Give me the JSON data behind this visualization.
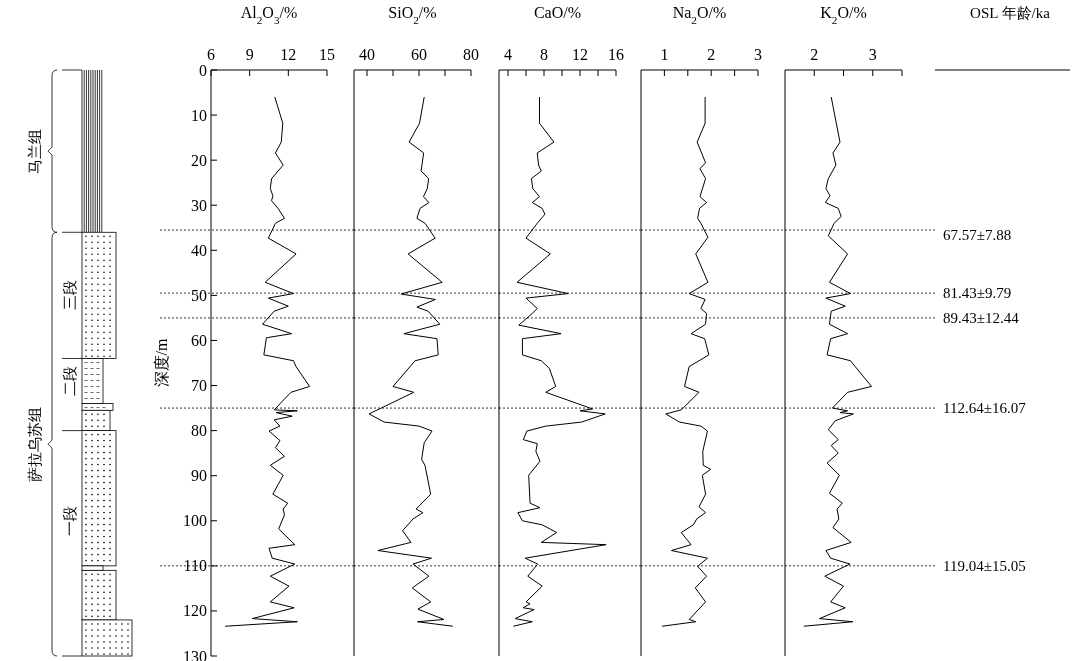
{
  "chart_data": [
    {
      "type": "line",
      "xlabel": "Al$_{2}$O$_{3}$/%",
      "ylabel": "深度/m",
      "xlim": [
        6,
        15
      ],
      "xticks": [
        6,
        9,
        12,
        15
      ],
      "ylim": [
        130,
        0
      ],
      "yticks": [
        0,
        10,
        20,
        30,
        40,
        50,
        60,
        70,
        80,
        90,
        100,
        110,
        120,
        130
      ],
      "marker": "none",
      "line_style": "solid",
      "grid": false,
      "annotations": [
        "马兰组",
        "萨拉乌苏组",
        "三段",
        "二段",
        "一段"
      ],
      "ref_lines": [
        {
          "axis": "y",
          "value": 35.5,
          "line_style": "dotted"
        },
        {
          "axis": "y",
          "value": 49.5,
          "line_style": "dotted"
        },
        {
          "axis": "y",
          "value": 55,
          "line_style": "dotted"
        },
        {
          "axis": "y",
          "value": 75,
          "line_style": "dotted"
        },
        {
          "axis": "y",
          "value": 110,
          "line_style": "dotted"
        }
      ],
      "series": [
        {
          "color": "#000000",
          "x": [
            10.95,
            11.57,
            11.45,
            11.0,
            11.6,
            10.7,
            10.6,
            10.8,
            10.7,
            11.2,
            11.7,
            11.0,
            10.45,
            12.6,
            10.2,
            12.4,
            10.45,
            12.0,
            10.9,
            10.0,
            12.25,
            10.3,
            10.1,
            12.4,
            12.6,
            13.65,
            12.2,
            10.9,
            12.7,
            11.05,
            12.3,
            10.9,
            11.35,
            10.5,
            11.35,
            11.0,
            11.7,
            10.6,
            11.6,
            10.8,
            11.95,
            11.6,
            11.7,
            11.25,
            12.5,
            10.5,
            10.75,
            12.5,
            10.6,
            12.05,
            10.6,
            12.45,
            9.2,
            12.7,
            7.1
          ],
          "values": [
            6,
            11.8,
            16,
            18.4,
            21.1,
            24.1,
            26.3,
            27.9,
            29,
            30.7,
            32.9,
            34,
            37.3,
            40.8,
            47.1,
            49.6,
            50.6,
            52.4,
            53.5,
            56.4,
            58.5,
            59.4,
            63.2,
            64.5,
            65.8,
            70.2,
            71.5,
            75.4,
            75.6,
            76,
            76.8,
            77.6,
            79,
            80.1,
            82.2,
            83.8,
            85.7,
            87.7,
            89.9,
            94.1,
            96.1,
            97.4,
            98.7,
            101.8,
            105.3,
            106.1,
            108.3,
            109.6,
            112.3,
            114.5,
            118,
            119.3,
            121.7,
            122.4,
            123.4
          ]
        }
      ]
    },
    {
      "type": "line",
      "xlabel": "SiO$_{2}$/%",
      "xlim": [
        35,
        80
      ],
      "xticks": [
        {
          "value": 40,
          "label": "40"
        },
        {
          "value": 50,
          "label": null
        },
        {
          "value": 60,
          "label": "60"
        },
        {
          "value": 70,
          "label": null
        },
        {
          "value": 80,
          "label": "80"
        }
      ],
      "ylim": [
        130,
        0
      ],
      "tick_labels": "x",
      "marker": "none",
      "line_style": "solid",
      "grid": false,
      "ref_lines": [
        {
          "axis": "y",
          "value": 35.5,
          "line_style": "dotted"
        },
        {
          "axis": "y",
          "value": 49.5,
          "line_style": "dotted"
        },
        {
          "axis": "y",
          "value": 55,
          "line_style": "dotted"
        },
        {
          "axis": "y",
          "value": 75,
          "line_style": "dotted"
        },
        {
          "axis": "y",
          "value": 110,
          "line_style": "dotted"
        }
      ],
      "series": [
        {
          "color": "#000000",
          "x": [
            62,
            60.2,
            56.2,
            61.8,
            60.8,
            63.7,
            63.2,
            61.7,
            63.8,
            60.4,
            59.2,
            62.3,
            66.2,
            55.8,
            68.9,
            53.1,
            66.3,
            59.2,
            63.5,
            68,
            54.2,
            66.9,
            67.4,
            58.5,
            50,
            58,
            40.8,
            46.6,
            60,
            65,
            62,
            61,
            62.3,
            64.5,
            58.9,
            61.5,
            57.7,
            53.7,
            56.9,
            44.2,
            64.8,
            57.7,
            63.8,
            57.4,
            64.5,
            59.6,
            69.6,
            59.4,
            73
          ],
          "values": [
            6,
            11.8,
            16,
            18.4,
            22.4,
            24.1,
            26.3,
            28.1,
            29.4,
            30.7,
            32.9,
            34,
            37.3,
            40.8,
            47.1,
            49.7,
            50.9,
            52.6,
            53.5,
            56.4,
            58.5,
            59.6,
            63.2,
            64.5,
            70.2,
            71.5,
            76.3,
            78.1,
            79,
            80.1,
            82.7,
            86.4,
            87.7,
            94.1,
            97.4,
            98.2,
            99.6,
            102.2,
            104.8,
            106.6,
            108.3,
            109.6,
            112.3,
            114.9,
            118,
            119.6,
            121.9,
            122.4,
            123.4
          ]
        }
      ]
    },
    {
      "type": "line",
      "xlabel": "CaO/%",
      "xlim": [
        3,
        16
      ],
      "xticks": [
        4,
        {
          "value": 6,
          "label": null
        },
        8,
        {
          "value": 10,
          "label": null
        },
        12,
        {
          "value": 14,
          "label": null
        },
        16
      ],
      "ylim": [
        130,
        0
      ],
      "tick_labels": "x",
      "marker": "none",
      "line_style": "solid",
      "grid": false,
      "ref_lines": [
        {
          "axis": "y",
          "value": 35.5,
          "line_style": "dotted"
        },
        {
          "axis": "y",
          "value": 49.5,
          "line_style": "dotted"
        },
        {
          "axis": "y",
          "value": 55,
          "line_style": "dotted"
        },
        {
          "axis": "y",
          "value": 75,
          "line_style": "dotted"
        },
        {
          "axis": "y",
          "value": 110,
          "line_style": "dotted"
        }
      ],
      "series": [
        {
          "color": "#000000",
          "x": [
            7.5,
            7.5,
            9.1,
            7.25,
            7.4,
            7.7,
            6.6,
            6.75,
            7.5,
            6.7,
            7.8,
            8.1,
            7.25,
            6,
            8.7,
            5,
            10.7,
            6,
            7.25,
            6.7,
            5.2,
            9.9,
            5.6,
            5.6,
            7.7,
            8.6,
            9.3,
            8.2,
            13.4,
            12,
            14.8,
            12.2,
            8.2,
            6.1,
            5.7,
            7.25,
            7.1,
            7.55,
            6.3,
            6.45,
            7.55,
            5.1,
            5.6,
            7.8,
            9.4,
            7.7,
            14.9,
            5.9,
            7.3,
            6.2,
            7.8,
            6,
            6.45,
            5.7,
            6.9,
            4.8,
            6.7,
            4.6
          ],
          "values": [
            6,
            11.8,
            16,
            18.4,
            21.1,
            22.4,
            24.1,
            26.3,
            28.1,
            29.4,
            30.7,
            32,
            34,
            37.3,
            40.8,
            47.1,
            49.6,
            50.6,
            52.9,
            54,
            56.6,
            58.5,
            59.6,
            63.2,
            64.5,
            66.2,
            70.2,
            71.5,
            75.2,
            75.6,
            76.3,
            78.1,
            79,
            80.1,
            82,
            82.9,
            84.6,
            86.8,
            89.9,
            96.1,
            97.1,
            98.2,
            100,
            100.9,
            102.6,
            104.8,
            105.3,
            108.3,
            109.6,
            112.3,
            114.5,
            118,
            118.4,
            119.3,
            119.7,
            121.7,
            122.4,
            123.4
          ]
        }
      ]
    },
    {
      "type": "line",
      "xlabel": "Na$_{2}$O/%",
      "xlim": [
        0.5,
        3
      ],
      "xticks": [
        1,
        {
          "value": 1.5,
          "label": null
        },
        2,
        {
          "value": 2.5,
          "label": null
        },
        3
      ],
      "ylim": [
        130,
        0
      ],
      "tick_labels": "x",
      "marker": "none",
      "line_style": "solid",
      "grid": false,
      "ref_lines": [
        {
          "axis": "y",
          "value": 35.5,
          "line_style": "dotted"
        },
        {
          "axis": "y",
          "value": 49.5,
          "line_style": "dotted"
        },
        {
          "axis": "y",
          "value": 55,
          "line_style": "dotted"
        },
        {
          "axis": "y",
          "value": 75,
          "line_style": "dotted"
        },
        {
          "axis": "y",
          "value": 110,
          "line_style": "dotted"
        }
      ],
      "series": [
        {
          "color": "#000000",
          "x": [
            1.87,
            1.87,
            1.7,
            1.88,
            1.76,
            1.88,
            1.76,
            1.9,
            1.75,
            1.71,
            1.78,
            1.93,
            1.67,
            1.93,
            1.53,
            1.87,
            1.78,
            1.9,
            1.88,
            1.57,
            1.86,
            1.95,
            1.53,
            1.43,
            1.74,
            1.36,
            1.03,
            1.32,
            1.78,
            1.92,
            1.82,
            1.83,
            1.99,
            1.81,
            1.88,
            1.74,
            1.88,
            1.69,
            1.62,
            1.36,
            1.57,
            1.15,
            1.92,
            1.71,
            1.9,
            1.66,
            1.88,
            1.53,
            1.67,
            0.95
          ],
          "values": [
            6,
            11.8,
            16,
            20.6,
            21.9,
            24.1,
            28.1,
            29.4,
            30.7,
            32.9,
            34,
            37.1,
            40.8,
            47.1,
            49.6,
            50.9,
            52.9,
            54,
            56.4,
            58.5,
            59.6,
            63.2,
            65.8,
            70.2,
            71.5,
            75.4,
            76.3,
            78.1,
            79,
            80.1,
            84.6,
            87.7,
            88.6,
            89.9,
            94.1,
            96.9,
            98.2,
            99.6,
            100.9,
            102.6,
            105.3,
            106.6,
            108.3,
            110.1,
            112.3,
            114.9,
            118,
            121.9,
            122.4,
            123.4
          ]
        }
      ]
    },
    {
      "type": "line",
      "xlabel": "K$_{2}$O/%",
      "xlim": [
        1.5,
        3.5
      ],
      "xticks": [
        2,
        {
          "value": 2.5,
          "label": null
        },
        3,
        {
          "value": 3.5,
          "label": null
        }
      ],
      "ylim": [
        130,
        0
      ],
      "tick_labels": "x",
      "marker": "none",
      "line_style": "solid",
      "grid": false,
      "annotations": [
        "OSL 年龄/ka",
        "67.57±7.88",
        "81.43±9.79",
        "89.43±12.44",
        "112.64±16.07",
        "119.04±15.05"
      ],
      "ref_lines": [
        {
          "axis": "y",
          "value": 35.5,
          "line_style": "dotted"
        },
        {
          "axis": "y",
          "value": 49.5,
          "line_style": "dotted"
        },
        {
          "axis": "y",
          "value": 55,
          "line_style": "dotted"
        },
        {
          "axis": "y",
          "value": 75,
          "line_style": "dotted"
        },
        {
          "axis": "y",
          "value": 110,
          "line_style": "dotted"
        }
      ],
      "series": [
        {
          "color": "#000000",
          "x": [
            2.29,
            2.44,
            2.32,
            2.37,
            2.24,
            2.2,
            2.27,
            2.19,
            2.41,
            2.46,
            2.34,
            2.24,
            2.57,
            2.26,
            2.62,
            2.2,
            2.53,
            2.29,
            2.26,
            2.57,
            2.28,
            2.22,
            2.62,
            2.7,
            2.98,
            2.57,
            2.31,
            2.57,
            2.44,
            2.67,
            2.36,
            2.24,
            2.41,
            2.29,
            2.41,
            2.22,
            2.43,
            2.26,
            2.48,
            2.39,
            2.42,
            2.32,
            2.63,
            2.2,
            2.28,
            2.61,
            2.18,
            2.5,
            2.28,
            2.53,
            2.09,
            2.66,
            1.82
          ],
          "values": [
            6,
            16,
            18.4,
            21.1,
            24.1,
            26.3,
            27.9,
            29.4,
            30.7,
            32.5,
            34,
            36.8,
            40.8,
            47.1,
            49.6,
            50.6,
            52.4,
            53.5,
            56.4,
            58.5,
            59.6,
            63.2,
            64.5,
            65.8,
            70.2,
            71.5,
            75,
            75.6,
            76,
            76.3,
            77.8,
            79.8,
            82,
            83.3,
            85,
            87.2,
            89.9,
            93.9,
            96.1,
            97.4,
            99.6,
            101.5,
            104.8,
            106.6,
            108.3,
            109.6,
            112.3,
            114.5,
            118,
            119.3,
            121.7,
            122.4,
            123.4
          ]
        }
      ]
    }
  ]
}
